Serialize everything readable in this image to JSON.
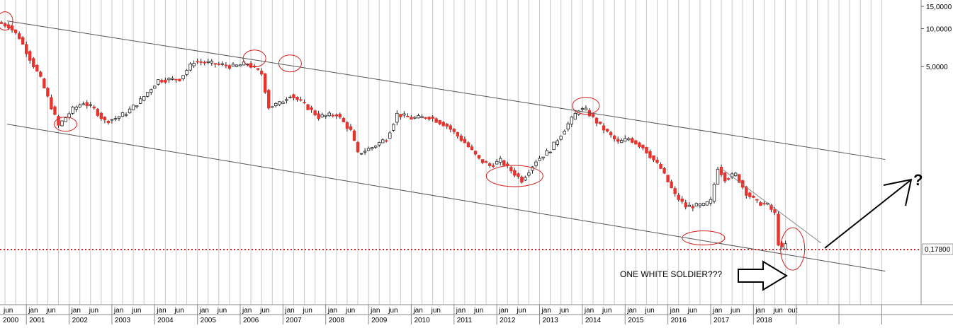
{
  "colors": {
    "background": "#ffffff",
    "grid": "#c8c8c8",
    "candle_up": "#ffffff",
    "candle_down": "#e8322d",
    "wick": "#222222",
    "channel": "#555555",
    "circles": "#d42020",
    "price_line": "#d42020",
    "arrow": "#000000"
  },
  "chart_data": {
    "type": "candlestick",
    "y_scale": "log",
    "ylim": [
      0.09,
      16
    ],
    "x_range": [
      "2000-06",
      "2021-03"
    ],
    "y_ticks": [
      {
        "value": 15,
        "label": "15,0000"
      },
      {
        "value": 10,
        "label": "10,0000"
      },
      {
        "value": 5,
        "label": "5,0000"
      }
    ],
    "current_price": {
      "value": 0.178,
      "label": "0,17800"
    },
    "year_labels": [
      "2000",
      "2001",
      "2002",
      "2003",
      "2004",
      "2005",
      "2006",
      "2007",
      "2008",
      "2009",
      "2010",
      "2011",
      "2012",
      "2013",
      "2014",
      "2015",
      "2016",
      "2017",
      "2018"
    ],
    "month_labels": [
      "jun",
      "jan",
      "jun",
      "out"
    ],
    "annotation_text": "ONE WHITE SOLDIER???",
    "question_mark": "?",
    "anchors": [
      {
        "date": "2000-06",
        "value": 11.2
      },
      {
        "date": "2000-09",
        "value": 10.5
      },
      {
        "date": "2000-12",
        "value": 8.5
      },
      {
        "date": "2001-03",
        "value": 5.8
      },
      {
        "date": "2001-06",
        "value": 4.0
      },
      {
        "date": "2001-09",
        "value": 2.4
      },
      {
        "date": "2001-11",
        "value": 1.7
      },
      {
        "date": "2002-03",
        "value": 2.3
      },
      {
        "date": "2002-06",
        "value": 2.6
      },
      {
        "date": "2002-09",
        "value": 2.3
      },
      {
        "date": "2002-12",
        "value": 1.85
      },
      {
        "date": "2003-03",
        "value": 1.95
      },
      {
        "date": "2003-06",
        "value": 2.15
      },
      {
        "date": "2003-10",
        "value": 2.7
      },
      {
        "date": "2004-03",
        "value": 3.9
      },
      {
        "date": "2004-09",
        "value": 4.0
      },
      {
        "date": "2005-01",
        "value": 5.5
      },
      {
        "date": "2005-06",
        "value": 5.3
      },
      {
        "date": "2005-12",
        "value": 5.0
      },
      {
        "date": "2006-04",
        "value": 5.3
      },
      {
        "date": "2006-08",
        "value": 4.4
      },
      {
        "date": "2006-10",
        "value": 2.4
      },
      {
        "date": "2007-01",
        "value": 2.55
      },
      {
        "date": "2007-04",
        "value": 3.0
      },
      {
        "date": "2007-08",
        "value": 2.5
      },
      {
        "date": "2007-12",
        "value": 2.0
      },
      {
        "date": "2008-05",
        "value": 2.1
      },
      {
        "date": "2008-09",
        "value": 1.55
      },
      {
        "date": "2008-11",
        "value": 1.02
      },
      {
        "date": "2009-03",
        "value": 1.15
      },
      {
        "date": "2009-07",
        "value": 1.35
      },
      {
        "date": "2009-10",
        "value": 2.1
      },
      {
        "date": "2010-02",
        "value": 1.95
      },
      {
        "date": "2010-07",
        "value": 2.0
      },
      {
        "date": "2010-12",
        "value": 1.7
      },
      {
        "date": "2011-05",
        "value": 1.25
      },
      {
        "date": "2011-09",
        "value": 0.92
      },
      {
        "date": "2011-12",
        "value": 0.82
      },
      {
        "date": "2012-03",
        "value": 0.9
      },
      {
        "date": "2012-09",
        "value": 0.63
      },
      {
        "date": "2013-01",
        "value": 0.9
      },
      {
        "date": "2013-05",
        "value": 1.1
      },
      {
        "date": "2013-09",
        "value": 1.6
      },
      {
        "date": "2014-01",
        "value": 2.3
      },
      {
        "date": "2014-03",
        "value": 2.25
      },
      {
        "date": "2014-07",
        "value": 1.7
      },
      {
        "date": "2014-12",
        "value": 1.25
      },
      {
        "date": "2015-03",
        "value": 1.35
      },
      {
        "date": "2015-07",
        "value": 1.15
      },
      {
        "date": "2015-12",
        "value": 0.78
      },
      {
        "date": "2016-04",
        "value": 0.48
      },
      {
        "date": "2016-07",
        "value": 0.39
      },
      {
        "date": "2016-12",
        "value": 0.4
      },
      {
        "date": "2017-02",
        "value": 0.43
      },
      {
        "date": "2017-04",
        "value": 0.8
      },
      {
        "date": "2017-06",
        "value": 0.65
      },
      {
        "date": "2017-09",
        "value": 0.7
      },
      {
        "date": "2017-12",
        "value": 0.5
      },
      {
        "date": "2018-03",
        "value": 0.42
      },
      {
        "date": "2018-06",
        "value": 0.4
      },
      {
        "date": "2018-08",
        "value": 0.34
      },
      {
        "date": "2018-09",
        "value": 0.2
      },
      {
        "date": "2018-10",
        "value": 0.18
      }
    ],
    "channel_lines": [
      {
        "start": {
          "date": "2000-06",
          "value": 11.5
        },
        "end": {
          "date": "2021-02",
          "value": 0.92
        }
      },
      {
        "start": {
          "date": "2000-06",
          "value": 1.75
        },
        "end": {
          "date": "2021-02",
          "value": 0.12
        }
      }
    ],
    "short_trendline": {
      "start": {
        "date": "2017-04",
        "value": 0.78
      },
      "end": {
        "date": "2019-08",
        "value": 0.2
      }
    },
    "circled_points": [
      {
        "date": "2000-07",
        "value": 11.5
      },
      {
        "date": "2001-12",
        "value": 1.75
      },
      {
        "date": "2006-05",
        "value": 5.8
      },
      {
        "date": "2007-03",
        "value": 5.3
      },
      {
        "date": "2012-06",
        "value": 0.68
      },
      {
        "date": "2014-02",
        "value": 2.45
      },
      {
        "date": "2016-11",
        "value": 0.22
      },
      {
        "date": "2018-12",
        "value": 0.18
      }
    ]
  }
}
